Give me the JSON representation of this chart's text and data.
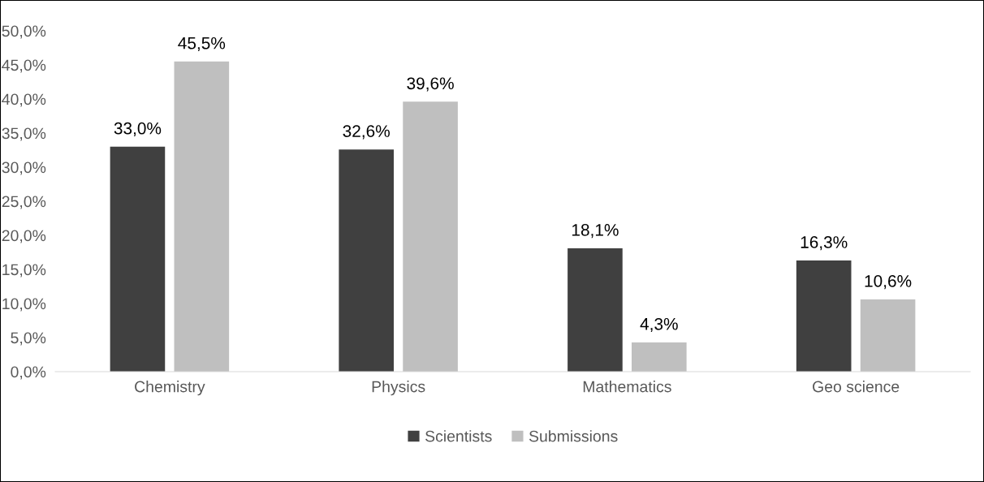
{
  "chart_data": {
    "type": "bar",
    "categories": [
      "Chemistry",
      "Physics",
      "Mathematics",
      "Geo science"
    ],
    "series": [
      {
        "name": "Scientists",
        "color": "#404040",
        "values": [
          33.0,
          32.6,
          18.1,
          16.3
        ],
        "value_labels": [
          "33,0%",
          "32,6%",
          "18,1%",
          "16,3%"
        ]
      },
      {
        "name": "Submissions",
        "color": "#bfbfbf",
        "values": [
          45.5,
          39.6,
          4.3,
          10.6
        ],
        "value_labels": [
          "45,5%",
          "39,6%",
          "4,3%",
          "10,6%"
        ]
      }
    ],
    "ylim": [
      0,
      50
    ],
    "yticks": [
      {
        "value": 0,
        "label": "0,0%"
      },
      {
        "value": 5,
        "label": "5,0%"
      },
      {
        "value": 10,
        "label": "10,0%"
      },
      {
        "value": 15,
        "label": "15,0%"
      },
      {
        "value": 20,
        "label": "20,0%"
      },
      {
        "value": 25,
        "label": "25,0%"
      },
      {
        "value": 30,
        "label": "30,0%"
      },
      {
        "value": 35,
        "label": "35,0%"
      },
      {
        "value": 40,
        "label": "40,0%"
      },
      {
        "value": 45,
        "label": "45,0%"
      },
      {
        "value": 50,
        "label": "50,0%"
      }
    ],
    "grid": false,
    "legend": "bottom"
  }
}
